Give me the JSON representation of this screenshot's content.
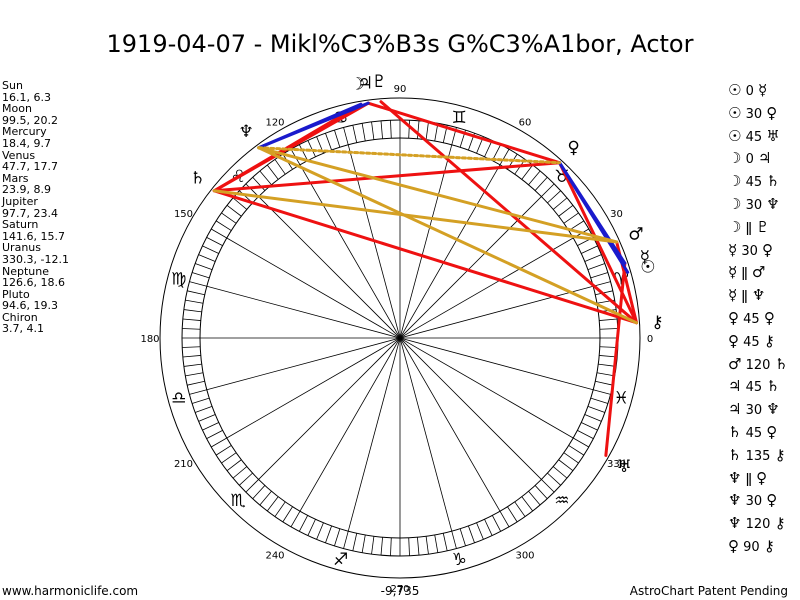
{
  "title": "1919-04-07 - Mikl%C3%B3s G%C3%A1bor, Actor",
  "planets": [
    {
      "name": "Sun",
      "coords": "16.1, 6.3",
      "lon": 16.1
    },
    {
      "name": "Moon",
      "coords": "99.5, 20.2",
      "lon": 99.5
    },
    {
      "name": "Mercury",
      "coords": "18.4, 9.7",
      "lon": 18.4
    },
    {
      "name": "Venus",
      "coords": "47.7, 17.7",
      "lon": 47.7
    },
    {
      "name": "Mars",
      "coords": "23.9, 8.9",
      "lon": 23.9
    },
    {
      "name": "Jupiter",
      "coords": "97.7, 23.4",
      "lon": 97.7
    },
    {
      "name": "Saturn",
      "coords": "141.6, 15.7",
      "lon": 141.6
    },
    {
      "name": "Uranus",
      "coords": "330.3, -12.1",
      "lon": 330.3
    },
    {
      "name": "Neptune",
      "coords": "126.6, 18.6",
      "lon": 126.6
    },
    {
      "name": "Pluto",
      "coords": "94.6, 19.3",
      "lon": 94.6
    },
    {
      "name": "Chiron",
      "coords": "3.7, 4.1",
      "lon": 3.7
    }
  ],
  "chart_glyphs": [
    {
      "name": "Sun",
      "glyph": "☉",
      "lon": 16.1
    },
    {
      "name": "Moon",
      "glyph": "☽",
      "lon": 99.5
    },
    {
      "name": "Mercury",
      "glyph": "☿",
      "lon": 18.4
    },
    {
      "name": "Venus",
      "glyph": "♀",
      "lon": 47.7
    },
    {
      "name": "Mars",
      "glyph": "♂",
      "lon": 23.9
    },
    {
      "name": "Jupiter",
      "glyph": "♃",
      "lon": 97.7
    },
    {
      "name": "Saturn",
      "glyph": "♄",
      "lon": 141.6
    },
    {
      "name": "Uranus",
      "glyph": "♅",
      "lon": 330.3
    },
    {
      "name": "Neptune",
      "glyph": "♆",
      "lon": 126.6
    },
    {
      "name": "Pluto",
      "glyph": "♇",
      "lon": 94.6
    },
    {
      "name": "Chiron",
      "glyph": "⚷",
      "lon": 3.7
    }
  ],
  "zodiac_glyphs": [
    "♈",
    "♉",
    "♊",
    "♋",
    "♌",
    "♍",
    "♎",
    "♏",
    "♐",
    "♑",
    "♒",
    "♓"
  ],
  "degree_labels": [
    "0",
    "30",
    "60",
    "90",
    "120",
    "150",
    "180",
    "210",
    "240",
    "270",
    "300",
    "330"
  ],
  "aspects_list": [
    {
      "p1": "☉",
      "asp": "0",
      "p2": "☿"
    },
    {
      "p1": "☉",
      "asp": "30",
      "p2": "♀"
    },
    {
      "p1": "☉",
      "asp": "45",
      "p2": "♅"
    },
    {
      "p1": "☽",
      "asp": "0",
      "p2": "♃"
    },
    {
      "p1": "☽",
      "asp": "45",
      "p2": "♄"
    },
    {
      "p1": "☽",
      "asp": "30",
      "p2": "♆"
    },
    {
      "p1": "☽",
      "asp": "ǁ",
      "p2": "♇"
    },
    {
      "p1": "☿",
      "asp": "30",
      "p2": "♀"
    },
    {
      "p1": "☿",
      "asp": "ǁ",
      "p2": "♂"
    },
    {
      "p1": "☿",
      "asp": "ǁ",
      "p2": "♆"
    },
    {
      "p1": "♀",
      "asp": "45",
      "p2": "♀"
    },
    {
      "p1": "♀",
      "asp": "45",
      "p2": "⚷"
    },
    {
      "p1": "♂",
      "asp": "120",
      "p2": "♄"
    },
    {
      "p1": "♃",
      "asp": "45",
      "p2": "♄"
    },
    {
      "p1": "♃",
      "asp": "30",
      "p2": "♆"
    },
    {
      "p1": "♄",
      "asp": "45",
      "p2": "♀"
    },
    {
      "p1": "♄",
      "asp": "135",
      "p2": "⚷"
    },
    {
      "p1": "♆",
      "asp": "ǁ",
      "p2": "♀"
    },
    {
      "p1": "♆",
      "asp": "30",
      "p2": "♀"
    },
    {
      "p1": "♆",
      "asp": "120",
      "p2": "⚷"
    },
    {
      "p1": "♀",
      "asp": "90",
      "p2": "⚷"
    }
  ],
  "aspect_lines": [
    {
      "a": 94.6,
      "b": 3.7,
      "color": "#ee1111"
    },
    {
      "a": 97.7,
      "b": 141.6,
      "color": "#ee1111"
    },
    {
      "a": 99.5,
      "b": 141.6,
      "color": "#ee1111"
    },
    {
      "a": 97.7,
      "b": 47.7,
      "color": "#ee1111"
    },
    {
      "a": 141.6,
      "b": 47.7,
      "color": "#ee1111"
    },
    {
      "a": 141.6,
      "b": 3.7,
      "color": "#ee1111"
    },
    {
      "a": 47.7,
      "b": 3.7,
      "color": "#ee1111"
    },
    {
      "a": 18.4,
      "b": 330.3,
      "color": "#ee1111"
    },
    {
      "a": 23.9,
      "b": 3.7,
      "color": "#ee1111"
    },
    {
      "a": 99.5,
      "b": 126.6,
      "color": "#1a1acc"
    },
    {
      "a": 97.7,
      "b": 126.6,
      "color": "#1a1acc"
    },
    {
      "a": 47.7,
      "b": 16.1,
      "color": "#1a1acc"
    },
    {
      "a": 47.7,
      "b": 18.4,
      "color": "#1a1acc"
    },
    {
      "a": 126.6,
      "b": 3.7,
      "color": "#d4a024"
    },
    {
      "a": 141.6,
      "b": 23.9,
      "color": "#d4a024"
    },
    {
      "a": 126.6,
      "b": 23.9,
      "color": "#d4a024"
    },
    {
      "a": 126.6,
      "b": 47.7,
      "color": "#d4a024",
      "dashed": true
    }
  ],
  "footer": {
    "left": "www.harmoniclife.com",
    "center": "-9,735",
    "right": "AstroChart Patent Pending"
  }
}
